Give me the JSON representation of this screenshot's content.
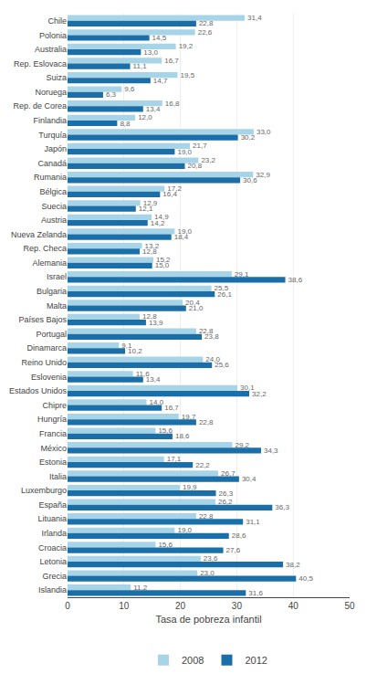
{
  "chart_data": {
    "type": "bar",
    "orientation": "horizontal",
    "xlabel": "Tasa de pobreza infantil",
    "categories": [
      "Chile",
      "Polonia",
      "Australia",
      "Rep. Eslovaca",
      "Suiza",
      "Noruega",
      "Rep. de Corea",
      "Finlandia",
      "Turquía",
      "Japón",
      "Canadá",
      "Rumania",
      "Bélgica",
      "Suecia",
      "Austria",
      "Nueva Zelanda",
      "Rep. Checa",
      "Alemania",
      "Israel",
      "Bulgaria",
      "Malta",
      "Países Bajos",
      "Portugal",
      "Dinamarca",
      "Reino Unido",
      "Eslovenia",
      "Estados Unidos",
      "Chipre",
      "Hungría",
      "Francia",
      "México",
      "Estonia",
      "Italia",
      "Luxemburgo",
      "España",
      "Lituania",
      "Irlanda",
      "Croacia",
      "Letonia",
      "Grecia",
      "Islandia"
    ],
    "series": [
      {
        "name": "2008",
        "color": "#a8d4e8",
        "values": [
          31.4,
          22.6,
          19.2,
          16.7,
          19.5,
          9.6,
          16.8,
          12.0,
          33.0,
          21.7,
          23.2,
          32.9,
          17.2,
          12.9,
          14.9,
          19.0,
          13.2,
          15.2,
          29.1,
          25.5,
          20.4,
          12.8,
          22.8,
          9.1,
          24.0,
          11.6,
          30.1,
          14.0,
          19.7,
          15.6,
          29.2,
          17.1,
          26.7,
          19.9,
          26.2,
          22.8,
          19.0,
          15.6,
          23.6,
          23.0,
          11.2
        ],
        "value_labels": [
          "31,4",
          "22,6",
          "19,2",
          "16,7",
          "19,5",
          "9,6",
          "16,8",
          "12,0",
          "33,0",
          "21,7",
          "23,2",
          "32,9",
          "17,2",
          "12,9",
          "14,9",
          "19,0",
          "13,2",
          "15,2",
          "29,1",
          "25,5",
          "20,4",
          "12,8",
          "22,8",
          "9,1",
          "24,0",
          "11,6",
          "30,1",
          "14,0",
          "19,7",
          "15,6",
          "29,2",
          "17,1",
          "26,7",
          "19,9",
          "26,2",
          "22,8",
          "19,0",
          "15,6",
          "23,6",
          "23,0",
          "11,2"
        ]
      },
      {
        "name": "2012",
        "color": "#1a6fa8",
        "values": [
          22.8,
          14.5,
          13.0,
          11.1,
          14.7,
          6.3,
          13.4,
          8.8,
          30.2,
          19.0,
          20.8,
          30.6,
          16.4,
          12.1,
          14.2,
          18.4,
          12.8,
          15.0,
          38.6,
          26.1,
          21.0,
          13.9,
          23.8,
          10.2,
          25.6,
          13.4,
          32.2,
          16.7,
          22.8,
          18.6,
          34.3,
          22.2,
          30.4,
          26.3,
          36.3,
          31.1,
          28.6,
          27.6,
          38.2,
          40.5,
          31.6
        ],
        "value_labels": [
          "22,8",
          "14,5",
          "13,0",
          "11,1",
          "14,7",
          "6,3",
          "13,4",
          "8,8",
          "30,2",
          "19,0",
          "20,8",
          "30,6",
          "16,4",
          "12,1",
          "14,2",
          "18,4",
          "12,8",
          "15,0",
          "38,6",
          "26,1",
          "21,0",
          "13,9",
          "23,8",
          "10,2",
          "25,6",
          "13,4",
          "32,2",
          "16,7",
          "22,8",
          "18,6",
          "34,3",
          "22,2",
          "30,4",
          "26,3",
          "36,3",
          "31,1",
          "28,6",
          "27,6",
          "38,2",
          "40,5",
          "31,6"
        ]
      }
    ],
    "xlim": [
      0,
      50
    ],
    "xticks": [
      0,
      10,
      20,
      30,
      40,
      50
    ],
    "grid": true,
    "legend": "bottom",
    "data_labels": true
  }
}
